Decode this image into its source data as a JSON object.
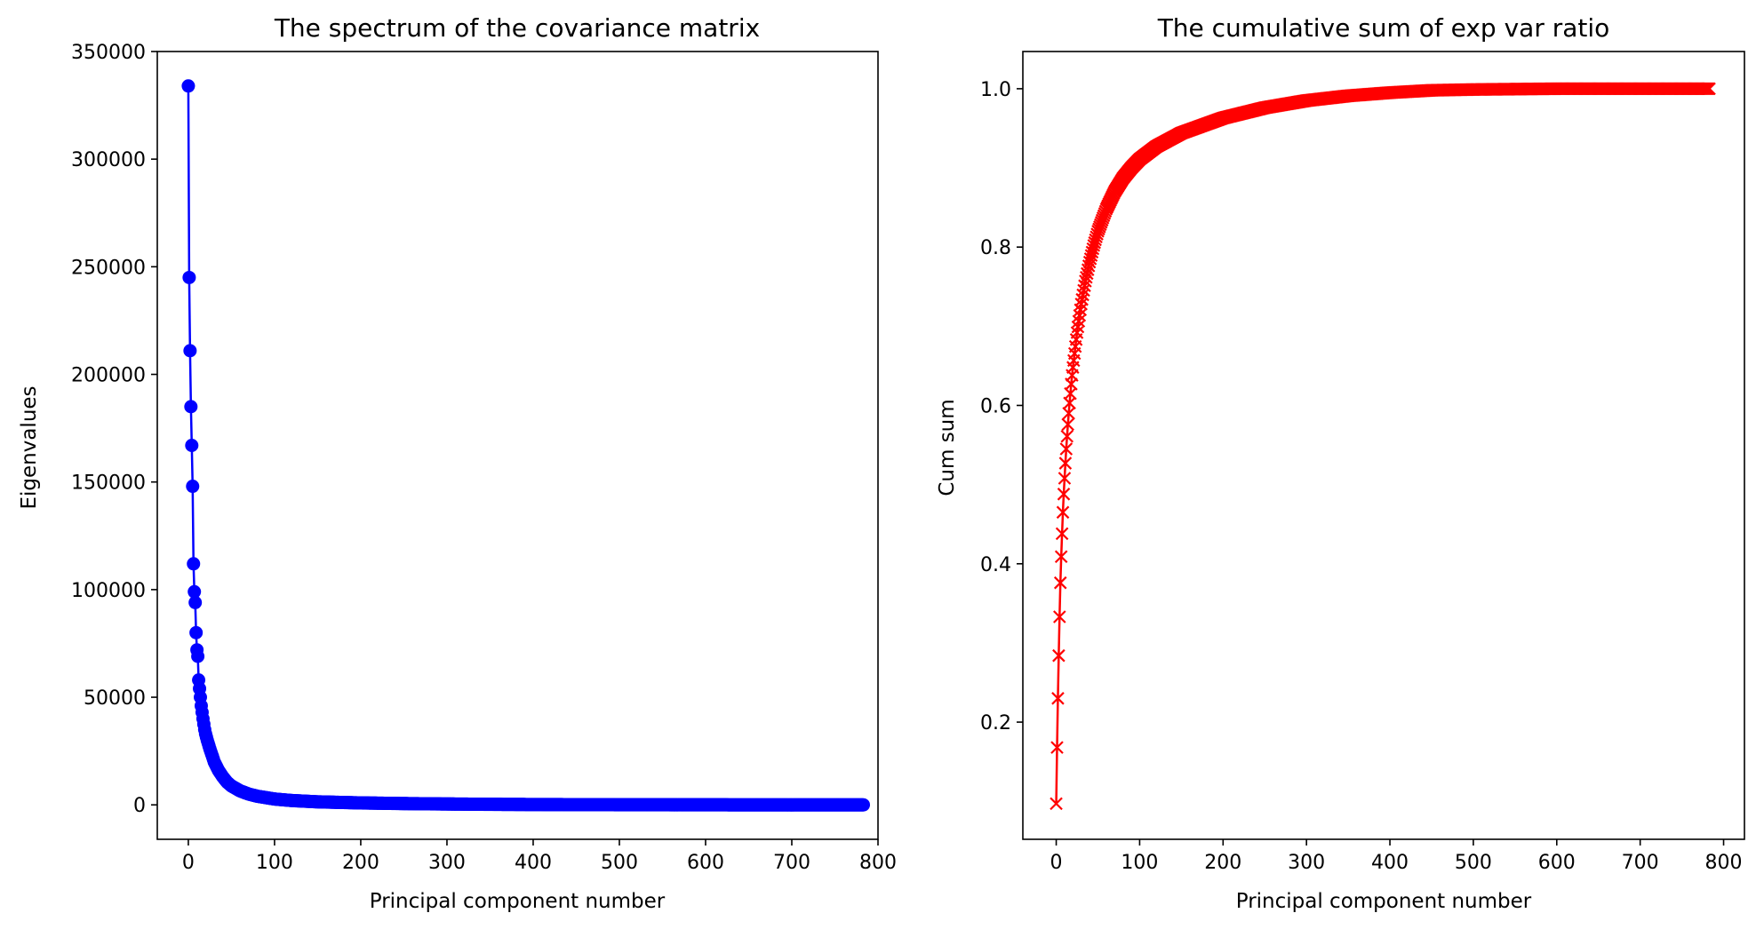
{
  "figure": {
    "background": "#ffffff"
  },
  "chart_data": [
    {
      "type": "line",
      "title": "The spectrum of the covariance matrix",
      "xlabel": "Principal component number",
      "ylabel": "Eigenvalues",
      "xlim": [
        -36,
        800
      ],
      "ylim": [
        -16000,
        350000
      ],
      "xticks": [
        0,
        100,
        200,
        300,
        400,
        500,
        600,
        700,
        800
      ],
      "yticks": [
        0,
        50000,
        100000,
        150000,
        200000,
        250000,
        300000,
        350000
      ],
      "grid": false,
      "legend": "none",
      "marker": "circle",
      "color": "#0000ff",
      "n_points": 784,
      "series": [
        {
          "x": [
            0,
            1,
            2,
            3,
            4,
            5,
            6,
            7,
            8,
            9,
            10,
            11,
            12,
            13,
            14,
            15,
            16,
            17,
            18,
            19,
            20,
            22,
            25,
            28,
            30,
            35,
            40,
            45,
            50,
            60,
            70,
            80,
            100,
            120,
            150,
            200,
            250,
            300,
            350,
            400,
            500,
            600,
            700,
            783
          ],
          "y": [
            334000,
            245000,
            211000,
            185000,
            167000,
            148000,
            112000,
            99000,
            94000,
            80000,
            72000,
            69000,
            58000,
            54000,
            50000,
            46000,
            43000,
            40000,
            37500,
            35000,
            33000,
            30000,
            26000,
            22500,
            20000,
            16000,
            13000,
            10500,
            8800,
            6500,
            5000,
            4000,
            2700,
            2000,
            1400,
            900,
            600,
            400,
            250,
            150,
            60,
            20,
            5,
            0
          ]
        }
      ]
    },
    {
      "type": "line",
      "title": "The cumulative sum of exp var ratio",
      "xlabel": "Principal component number",
      "ylabel": "Cum sum",
      "xlim": [
        -40,
        825
      ],
      "ylim": [
        0.052,
        1.047
      ],
      "xticks": [
        0,
        100,
        200,
        300,
        400,
        500,
        600,
        700,
        800
      ],
      "yticks": [
        0.2,
        0.4,
        0.6,
        0.8,
        1.0
      ],
      "ytick_format": 1,
      "grid": false,
      "legend": "none",
      "marker": "x",
      "color": "#ff0000",
      "n_points": 784,
      "series": [
        {
          "x": [
            0,
            1,
            2,
            3,
            4,
            5,
            6,
            7,
            8,
            9,
            10,
            11,
            12,
            13,
            14,
            15,
            16,
            17,
            18,
            19,
            20,
            25,
            30,
            35,
            40,
            45,
            50,
            60,
            70,
            80,
            90,
            100,
            120,
            150,
            200,
            250,
            300,
            350,
            400,
            450,
            500,
            600,
            700,
            783
          ],
          "y": [
            0.097,
            0.168,
            0.23,
            0.284,
            0.333,
            0.376,
            0.409,
            0.438,
            0.465,
            0.488,
            0.508,
            0.527,
            0.545,
            0.561,
            0.576,
            0.59,
            0.603,
            0.615,
            0.627,
            0.638,
            0.648,
            0.692,
            0.728,
            0.757,
            0.781,
            0.802,
            0.82,
            0.848,
            0.87,
            0.887,
            0.9,
            0.911,
            0.927,
            0.944,
            0.963,
            0.976,
            0.985,
            0.991,
            0.995,
            0.998,
            0.999,
            1.0,
            1.0,
            1.0
          ]
        }
      ]
    }
  ]
}
